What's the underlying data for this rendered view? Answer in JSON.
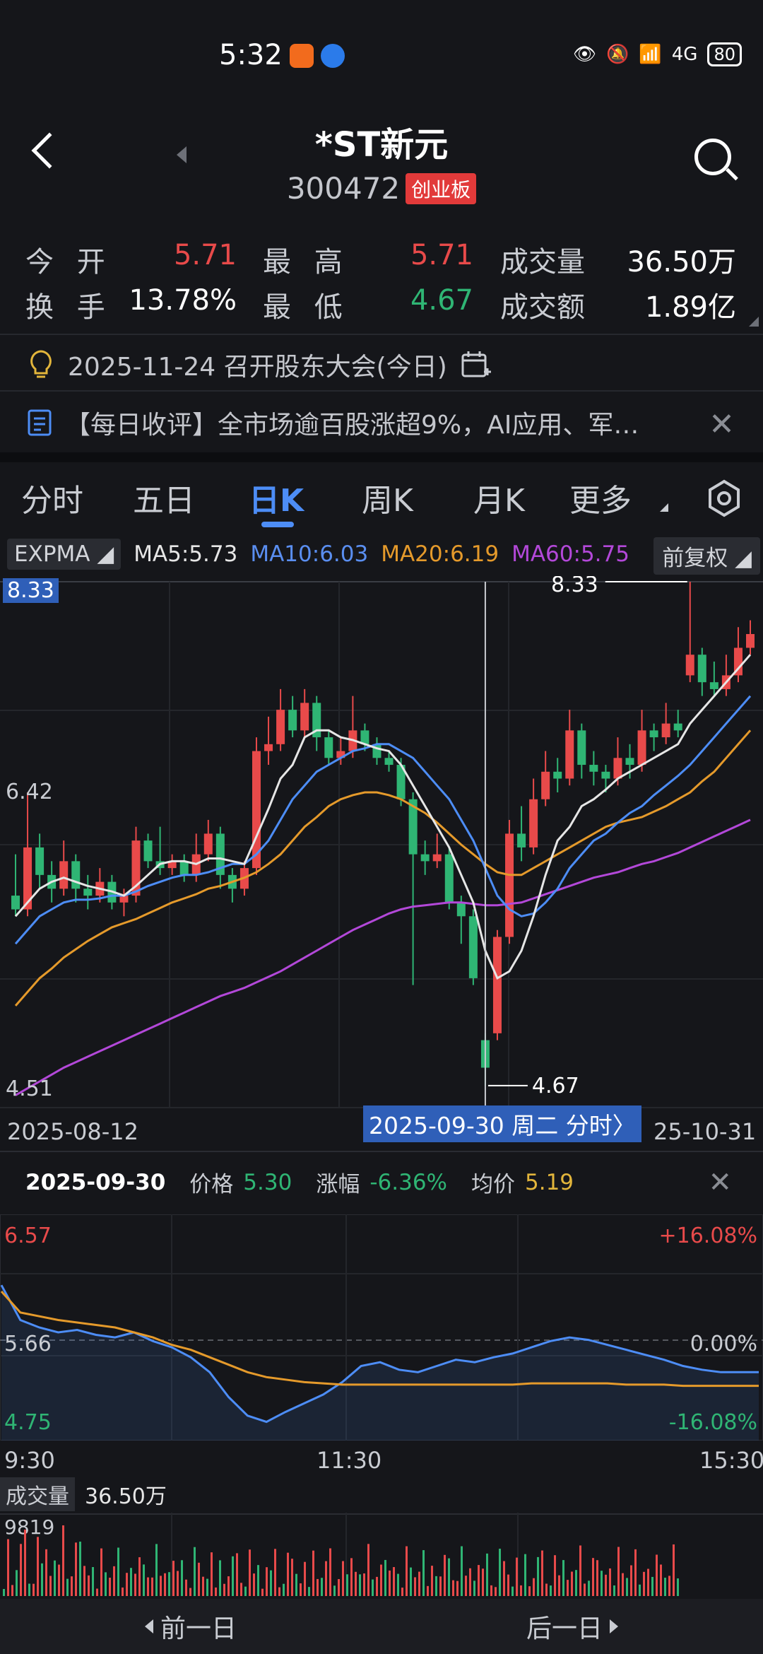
{
  "status_bar": {
    "time": "5:32",
    "battery": "80",
    "network": "4G"
  },
  "header": {
    "title": "*ST新元",
    "code": "300472",
    "board": "创业板"
  },
  "quote": {
    "open_label": "今 开",
    "open": "5.71",
    "high_label": "最 高",
    "high": "5.71",
    "volume_label": "成交量",
    "volume": "36.50万",
    "turnover_label": "换 手",
    "turnover": "13.78%",
    "low_label": "最 低",
    "low": "4.67",
    "amount_label": "成交额",
    "amount": "1.89亿"
  },
  "notice": {
    "text": "2025-11-24 召开股东大会(今日)"
  },
  "news": {
    "text": "【每日收评】全市场逾百股涨超9%，AI应用、军…"
  },
  "tabs": [
    {
      "label": "分时"
    },
    {
      "label": "五日"
    },
    {
      "label": "日K"
    },
    {
      "label": "周K"
    },
    {
      "label": "月K"
    },
    {
      "label": "更多"
    }
  ],
  "indicators": {
    "name": "EXPMA",
    "ma5": "MA5:5.73",
    "ma10": "MA10:6.03",
    "ma20": "MA20:6.19",
    "ma60": "MA60:5.75",
    "adjust": "前复权",
    "colors": {
      "ma5": "#e6e6e6",
      "ma10": "#4d8df6",
      "ma20": "#e59a2b",
      "ma60": "#b348d9",
      "up": "#e84a4a",
      "down": "#2fb574"
    }
  },
  "kchart": {
    "price_tag": "8.33",
    "y_top": "8.33",
    "y_mid": "6.42",
    "y_bottom": "4.51",
    "max_label": "8.33",
    "min_label": "4.67",
    "date_start": "2025-08-12",
    "date_end": "25-10-31",
    "selected_date": "2025-09-30 周二 分时〉"
  },
  "chart_data": [
    {
      "type": "candlestick",
      "ylim": [
        4.51,
        8.33
      ],
      "candles": [
        {
          "o": 6.05,
          "c": 5.95,
          "h": 6.35,
          "l": 5.9
        },
        {
          "o": 5.95,
          "c": 6.4,
          "h": 6.8,
          "l": 5.9
        },
        {
          "o": 6.4,
          "c": 6.2,
          "h": 6.5,
          "l": 6.1
        },
        {
          "o": 6.2,
          "c": 6.1,
          "h": 6.3,
          "l": 6.0
        },
        {
          "o": 6.1,
          "c": 6.3,
          "h": 6.45,
          "l": 6.05
        },
        {
          "o": 6.3,
          "c": 6.1,
          "h": 6.35,
          "l": 6.0
        },
        {
          "o": 6.1,
          "c": 6.05,
          "h": 6.2,
          "l": 5.95
        },
        {
          "o": 6.05,
          "c": 6.15,
          "h": 6.25,
          "l": 6.0
        },
        {
          "o": 6.15,
          "c": 6.0,
          "h": 6.2,
          "l": 5.95
        },
        {
          "o": 6.0,
          "c": 6.05,
          "h": 6.1,
          "l": 5.9
        },
        {
          "o": 6.05,
          "c": 6.45,
          "h": 6.55,
          "l": 6.0
        },
        {
          "o": 6.45,
          "c": 6.3,
          "h": 6.5,
          "l": 6.25
        },
        {
          "o": 6.3,
          "c": 6.25,
          "h": 6.55,
          "l": 6.2
        },
        {
          "o": 6.25,
          "c": 6.3,
          "h": 6.35,
          "l": 6.2
        },
        {
          "o": 6.3,
          "c": 6.2,
          "h": 6.35,
          "l": 6.15
        },
        {
          "o": 6.2,
          "c": 6.35,
          "h": 6.5,
          "l": 6.15
        },
        {
          "o": 6.35,
          "c": 6.5,
          "h": 6.6,
          "l": 6.3
        },
        {
          "o": 6.5,
          "c": 6.2,
          "h": 6.55,
          "l": 6.1
        },
        {
          "o": 6.2,
          "c": 6.1,
          "h": 6.25,
          "l": 6.0
        },
        {
          "o": 6.1,
          "c": 6.25,
          "h": 6.3,
          "l": 6.05
        },
        {
          "o": 6.25,
          "c": 7.1,
          "h": 7.2,
          "l": 6.2
        },
        {
          "o": 7.1,
          "c": 7.15,
          "h": 7.35,
          "l": 7.0
        },
        {
          "o": 7.15,
          "c": 7.4,
          "h": 7.55,
          "l": 7.1
        },
        {
          "o": 7.4,
          "c": 7.25,
          "h": 7.5,
          "l": 7.2
        },
        {
          "o": 7.25,
          "c": 7.45,
          "h": 7.55,
          "l": 7.2
        },
        {
          "o": 7.45,
          "c": 7.2,
          "h": 7.5,
          "l": 7.1
        },
        {
          "o": 7.2,
          "c": 7.05,
          "h": 7.25,
          "l": 7.0
        },
        {
          "o": 7.05,
          "c": 7.1,
          "h": 7.2,
          "l": 7.0
        },
        {
          "o": 7.1,
          "c": 7.25,
          "h": 7.5,
          "l": 7.05
        },
        {
          "o": 7.25,
          "c": 7.15,
          "h": 7.3,
          "l": 7.1
        },
        {
          "o": 7.15,
          "c": 7.05,
          "h": 7.2,
          "l": 7.0
        },
        {
          "o": 7.05,
          "c": 7.0,
          "h": 7.1,
          "l": 6.95
        },
        {
          "o": 7.0,
          "c": 6.75,
          "h": 7.05,
          "l": 6.7
        },
        {
          "o": 6.75,
          "c": 6.35,
          "h": 6.8,
          "l": 5.4
        },
        {
          "o": 6.35,
          "c": 6.3,
          "h": 6.45,
          "l": 6.2
        },
        {
          "o": 6.3,
          "c": 6.35,
          "h": 6.5,
          "l": 6.25
        },
        {
          "o": 6.35,
          "c": 6.0,
          "h": 6.4,
          "l": 5.95
        },
        {
          "o": 6.0,
          "c": 5.9,
          "h": 6.05,
          "l": 5.7
        },
        {
          "o": 5.9,
          "c": 5.45,
          "h": 5.95,
          "l": 5.4
        },
        {
          "o": 5.0,
          "c": 4.8,
          "h": 5.05,
          "l": 4.67
        },
        {
          "o": 5.05,
          "c": 5.75,
          "h": 5.8,
          "l": 5.0
        },
        {
          "o": 5.75,
          "c": 6.5,
          "h": 6.6,
          "l": 5.7
        },
        {
          "o": 6.5,
          "c": 6.4,
          "h": 6.7,
          "l": 6.3
        },
        {
          "o": 6.4,
          "c": 6.75,
          "h": 6.9,
          "l": 6.35
        },
        {
          "o": 6.75,
          "c": 6.95,
          "h": 7.1,
          "l": 6.7
        },
        {
          "o": 6.95,
          "c": 6.9,
          "h": 7.05,
          "l": 6.8
        },
        {
          "o": 6.9,
          "c": 7.25,
          "h": 7.4,
          "l": 6.85
        },
        {
          "o": 7.25,
          "c": 7.0,
          "h": 7.3,
          "l": 6.9
        },
        {
          "o": 7.0,
          "c": 6.95,
          "h": 7.1,
          "l": 6.85
        },
        {
          "o": 6.95,
          "c": 6.9,
          "h": 7.0,
          "l": 6.8
        },
        {
          "o": 6.9,
          "c": 7.05,
          "h": 7.2,
          "l": 6.85
        },
        {
          "o": 7.05,
          "c": 7.0,
          "h": 7.15,
          "l": 6.9
        },
        {
          "o": 7.0,
          "c": 7.25,
          "h": 7.4,
          "l": 6.95
        },
        {
          "o": 7.25,
          "c": 7.2,
          "h": 7.3,
          "l": 7.1
        },
        {
          "o": 7.2,
          "c": 7.3,
          "h": 7.45,
          "l": 7.15
        },
        {
          "o": 7.3,
          "c": 7.25,
          "h": 7.4,
          "l": 7.2
        },
        {
          "o": 7.65,
          "c": 7.8,
          "h": 8.33,
          "l": 7.6
        },
        {
          "o": 7.8,
          "c": 7.6,
          "h": 7.85,
          "l": 7.5
        },
        {
          "o": 7.6,
          "c": 7.55,
          "h": 7.75,
          "l": 7.5
        },
        {
          "o": 7.55,
          "c": 7.65,
          "h": 7.8,
          "l": 7.5
        },
        {
          "o": 7.65,
          "c": 7.85,
          "h": 8.0,
          "l": 7.6
        },
        {
          "o": 7.85,
          "c": 7.95,
          "h": 8.05,
          "l": 7.8
        }
      ],
      "ma5": [
        5.9,
        6.0,
        6.1,
        6.15,
        6.18,
        6.15,
        6.12,
        6.1,
        6.08,
        6.05,
        6.12,
        6.2,
        6.28,
        6.3,
        6.3,
        6.28,
        6.32,
        6.32,
        6.3,
        6.28,
        6.48,
        6.68,
        6.9,
        7.0,
        7.2,
        7.25,
        7.25,
        7.2,
        7.18,
        7.15,
        7.12,
        7.1,
        7.0,
        6.85,
        6.7,
        6.55,
        6.4,
        6.2,
        6.0,
        5.65,
        5.45,
        5.5,
        5.65,
        5.9,
        6.2,
        6.45,
        6.55,
        6.7,
        6.75,
        6.82,
        6.9,
        6.95,
        7.0,
        7.05,
        7.1,
        7.15,
        7.3,
        7.4,
        7.5,
        7.6,
        7.7,
        7.8
      ],
      "ma10": [
        5.7,
        5.8,
        5.9,
        5.95,
        6.0,
        6.02,
        6.02,
        6.03,
        6.05,
        6.05,
        6.08,
        6.12,
        6.15,
        6.18,
        6.2,
        6.2,
        6.22,
        6.25,
        6.28,
        6.28,
        6.35,
        6.45,
        6.6,
        6.75,
        6.85,
        6.95,
        7.0,
        7.05,
        7.1,
        7.12,
        7.15,
        7.15,
        7.1,
        7.05,
        6.95,
        6.85,
        6.75,
        6.6,
        6.45,
        6.25,
        6.05,
        5.95,
        5.9,
        5.92,
        6.0,
        6.1,
        6.25,
        6.35,
        6.45,
        6.5,
        6.58,
        6.65,
        6.7,
        6.78,
        6.85,
        6.92,
        7.0,
        7.1,
        7.2,
        7.3,
        7.4,
        7.5
      ],
      "ma20": [
        5.25,
        5.35,
        5.45,
        5.52,
        5.6,
        5.66,
        5.72,
        5.77,
        5.82,
        5.85,
        5.88,
        5.92,
        5.96,
        6.0,
        6.03,
        6.06,
        6.1,
        6.12,
        6.15,
        6.18,
        6.22,
        6.28,
        6.35,
        6.45,
        6.55,
        6.62,
        6.7,
        6.75,
        6.78,
        6.8,
        6.8,
        6.78,
        6.75,
        6.7,
        6.65,
        6.58,
        6.5,
        6.42,
        6.35,
        6.28,
        6.22,
        6.2,
        6.2,
        6.25,
        6.3,
        6.35,
        6.4,
        6.45,
        6.5,
        6.55,
        6.58,
        6.6,
        6.62,
        6.66,
        6.7,
        6.75,
        6.8,
        6.88,
        6.95,
        7.05,
        7.15,
        7.25
      ],
      "ma60": [
        4.6,
        4.65,
        4.7,
        4.75,
        4.8,
        4.84,
        4.88,
        4.92,
        4.96,
        5.0,
        5.04,
        5.08,
        5.12,
        5.16,
        5.2,
        5.24,
        5.28,
        5.32,
        5.35,
        5.38,
        5.42,
        5.46,
        5.5,
        5.55,
        5.6,
        5.65,
        5.7,
        5.75,
        5.8,
        5.84,
        5.88,
        5.92,
        5.95,
        5.97,
        5.98,
        5.99,
        6.0,
        6.0,
        5.99,
        5.98,
        5.98,
        5.99,
        6.0,
        6.03,
        6.06,
        6.09,
        6.12,
        6.15,
        6.18,
        6.2,
        6.22,
        6.25,
        6.28,
        6.3,
        6.33,
        6.36,
        6.4,
        6.44,
        6.48,
        6.52,
        6.56,
        6.6
      ]
    },
    {
      "type": "line",
      "title": "2025-09-30",
      "ylim": [
        4.75,
        6.57
      ],
      "x_labels": [
        "9:30",
        "11:30",
        "15:30"
      ],
      "price": [
        6.0,
        5.72,
        5.66,
        5.62,
        5.64,
        5.6,
        5.58,
        5.62,
        5.55,
        5.5,
        5.42,
        5.3,
        5.1,
        4.95,
        4.9,
        4.98,
        5.05,
        5.12,
        5.22,
        5.35,
        5.38,
        5.32,
        5.3,
        5.35,
        5.4,
        5.38,
        5.42,
        5.45,
        5.5,
        5.55,
        5.58,
        5.56,
        5.52,
        5.48,
        5.44,
        5.4,
        5.35,
        5.32,
        5.3,
        5.3,
        5.3
      ],
      "avg": [
        5.95,
        5.78,
        5.75,
        5.72,
        5.7,
        5.68,
        5.66,
        5.62,
        5.58,
        5.52,
        5.48,
        5.42,
        5.36,
        5.3,
        5.26,
        5.24,
        5.22,
        5.21,
        5.2,
        5.2,
        5.2,
        5.2,
        5.2,
        5.2,
        5.2,
        5.2,
        5.2,
        5.2,
        5.21,
        5.21,
        5.21,
        5.21,
        5.21,
        5.2,
        5.2,
        5.2,
        5.19,
        5.19,
        5.19,
        5.19,
        5.19
      ]
    }
  ],
  "intraday": {
    "date": "2025-09-30",
    "price_label": "价格",
    "price": "5.30",
    "change_label": "涨幅",
    "change": "-6.36%",
    "avg_label": "均价",
    "avg": "5.19",
    "y_top": "6.57",
    "y_mid": "5.66",
    "y_bottom": "4.75",
    "pct_top": "+16.08%",
    "pct_mid": "0.00%",
    "pct_bottom": "-16.08%",
    "time_start": "9:30",
    "time_mid": "11:30",
    "time_end": "15:30",
    "volume_label": "成交量",
    "volume_value": "36.50万",
    "volume_max": "9819"
  },
  "bottom_nav": {
    "prev": "前一日",
    "next": "后一日"
  }
}
